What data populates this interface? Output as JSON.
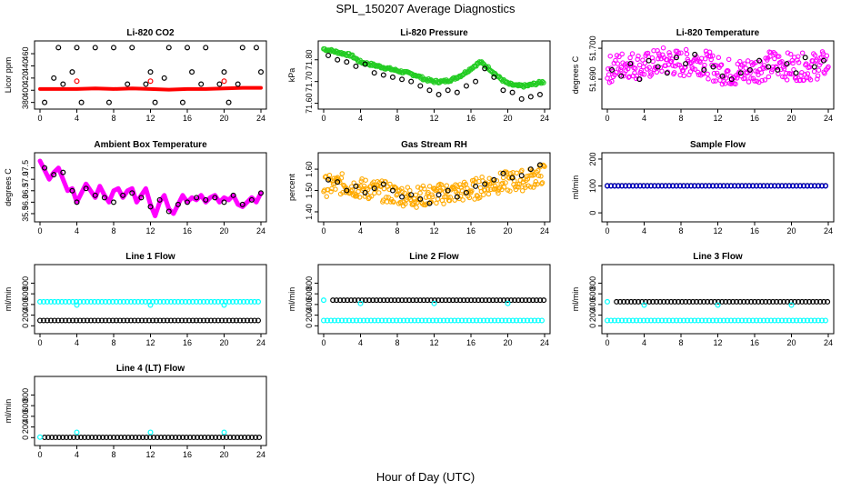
{
  "title": "SPL_150207  Average Diagnostics",
  "xlabel": "Hour of Day (UTC)",
  "colors": {
    "black": "#000000",
    "red": "#ff0000",
    "green": "#22cc22",
    "magenta": "#ff00ff",
    "orange": "#ffaa00",
    "blue": "#0000cc",
    "cyan": "#00ffff"
  },
  "chart_data": [
    {
      "type": "scatter",
      "title": "Li-820 CO2",
      "ylabel": "Licor ppm",
      "xlim": [
        0,
        24
      ],
      "ylim": [
        375,
        475
      ],
      "xticks": [
        "0",
        "4",
        "8",
        "12",
        "16",
        "20",
        "24"
      ],
      "yticks": [
        "380",
        "400",
        "420",
        "440",
        "460"
      ],
      "series": [
        {
          "color": "red",
          "kind": "line",
          "x": [
            0,
            2,
            4,
            6,
            8,
            10,
            12,
            14,
            16,
            18,
            20,
            22,
            24
          ],
          "y": [
            402,
            402,
            402,
            403,
            402,
            403,
            402,
            401,
            402,
            402,
            403,
            404,
            404
          ]
        },
        {
          "color": "black",
          "kind": "points",
          "x": [
            0.5,
            2,
            2.5,
            4,
            3.5,
            4.5,
            6,
            7.5,
            8,
            10,
            11.5,
            12,
            12.5,
            14,
            15.5,
            16,
            16.5,
            18,
            19.5,
            20,
            20.5,
            22,
            23.5,
            24,
            1.5,
            9.5,
            13.5,
            17.5,
            21.5
          ],
          "y": [
            380,
            470,
            410,
            470,
            430,
            380,
            470,
            380,
            470,
            470,
            410,
            430,
            380,
            470,
            380,
            470,
            430,
            470,
            410,
            430,
            380,
            470,
            470,
            430,
            420,
            410,
            420,
            410,
            410
          ]
        },
        {
          "color": "red",
          "kind": "points",
          "x": [
            4,
            12,
            20
          ],
          "y": [
            415,
            415,
            415
          ]
        }
      ]
    },
    {
      "type": "scatter",
      "title": "Li-820 Pressure",
      "ylabel": "kPa",
      "xlim": [
        0,
        24
      ],
      "ylim": [
        71.59,
        71.87
      ],
      "xticks": [
        "0",
        "4",
        "8",
        "12",
        "16",
        "20",
        "24"
      ],
      "yticks": [
        "71.60",
        "71.70",
        "71.80"
      ],
      "series": [
        {
          "color": "green",
          "kind": "dense",
          "x": [
            0,
            1,
            2,
            3,
            4,
            5,
            6,
            7,
            8,
            9,
            10,
            11,
            12,
            13,
            14,
            15,
            16,
            17,
            18,
            19,
            20,
            21,
            22,
            23,
            24
          ],
          "y": [
            71.85,
            71.84,
            71.83,
            71.82,
            71.79,
            71.78,
            71.77,
            71.76,
            71.75,
            71.74,
            71.73,
            71.71,
            71.7,
            71.7,
            71.71,
            71.73,
            71.76,
            71.79,
            71.76,
            71.72,
            71.69,
            71.68,
            71.68,
            71.69,
            71.7
          ]
        },
        {
          "color": "black",
          "kind": "points",
          "x": [
            0.5,
            1.5,
            2.5,
            3.5,
            4.5,
            5.5,
            6.5,
            7.5,
            8.5,
            9.5,
            10.5,
            11.5,
            12.5,
            13.5,
            14.5,
            15.5,
            16.5,
            17.5,
            18.5,
            19.5,
            20.5,
            21.5,
            22.5,
            23.5
          ],
          "y": [
            71.82,
            71.8,
            71.79,
            71.77,
            71.78,
            71.74,
            71.73,
            71.72,
            71.71,
            71.7,
            71.68,
            71.66,
            71.64,
            71.66,
            71.65,
            71.68,
            71.7,
            71.76,
            71.72,
            71.66,
            71.65,
            71.62,
            71.63,
            71.64
          ]
        }
      ]
    },
    {
      "type": "scatter",
      "title": "Li-820 Temperature",
      "ylabel": "degrees C",
      "xlim": [
        0,
        24
      ],
      "ylim": [
        51.6815,
        51.7012
      ],
      "xticks": [
        "0",
        "4",
        "8",
        "12",
        "16",
        "20",
        "24"
      ],
      "yticks": [
        "51.690",
        "51.700"
      ],
      "series": [
        {
          "color": "magenta",
          "kind": "noise",
          "x": [
            0,
            2,
            4,
            6,
            8,
            10,
            12,
            14,
            16,
            18,
            20,
            22,
            24
          ],
          "y": [
            51.693,
            51.695,
            51.694,
            51.696,
            51.695,
            51.696,
            51.693,
            51.692,
            51.693,
            51.695,
            51.694,
            51.694,
            51.695
          ],
          "spread": 0.0045
        },
        {
          "color": "black",
          "kind": "points",
          "x": [
            0.5,
            1.5,
            2.5,
            3.5,
            4.5,
            5.5,
            6.5,
            7.5,
            8.5,
            9.5,
            10.5,
            11.5,
            12.5,
            13.5,
            14.5,
            15.5,
            16.5,
            17.5,
            18.5,
            19.5,
            20.5,
            21.5,
            22.5,
            23.5
          ],
          "y": [
            51.693,
            51.691,
            51.695,
            51.69,
            51.696,
            51.694,
            51.692,
            51.697,
            51.695,
            51.698,
            51.693,
            51.694,
            51.691,
            51.69,
            51.692,
            51.693,
            51.696,
            51.694,
            51.693,
            51.695,
            51.692,
            51.697,
            51.694,
            51.696
          ]
        }
      ]
    },
    {
      "type": "scatter",
      "title": "Ambient Box Temperature",
      "ylabel": "degrees C",
      "xlim": [
        0,
        24
      ],
      "ylim": [
        35.3,
        38.0
      ],
      "xticks": [
        "0",
        "4",
        "8",
        "12",
        "16",
        "20",
        "24"
      ],
      "yticks": [
        "35.5",
        "36.0",
        "36.5",
        "37.0",
        "37.5"
      ],
      "series": [
        {
          "color": "magenta",
          "kind": "thickline",
          "x": [
            0,
            0.5,
            1,
            1.5,
            2,
            2.5,
            3,
            3.5,
            4,
            4.5,
            5,
            5.5,
            6,
            6.5,
            7,
            7.5,
            8,
            8.5,
            9,
            9.5,
            10,
            10.5,
            11,
            11.5,
            12,
            12.5,
            13,
            13.5,
            14,
            14.5,
            15,
            15.5,
            16,
            16.5,
            17,
            17.5,
            18,
            18.5,
            19,
            19.5,
            20,
            20.5,
            21,
            21.5,
            22,
            22.5,
            23,
            23.5,
            24
          ],
          "y": [
            37.8,
            37.4,
            37.0,
            37.3,
            37.5,
            37.0,
            36.5,
            36.6,
            36.0,
            36.4,
            36.8,
            36.5,
            36.2,
            36.7,
            36.3,
            36.0,
            36.5,
            36.6,
            36.2,
            36.5,
            36.6,
            36.0,
            36.3,
            36.6,
            35.9,
            35.4,
            36.0,
            36.3,
            35.7,
            35.5,
            35.9,
            36.3,
            36.0,
            36.2,
            36.1,
            36.3,
            36.0,
            36.2,
            36.3,
            36.0,
            36.2,
            36.1,
            36.3,
            35.9,
            35.8,
            36.0,
            36.2,
            36.0,
            36.4
          ]
        },
        {
          "color": "black",
          "kind": "points",
          "x": [
            0.5,
            1.5,
            2.5,
            3.5,
            4,
            5,
            6,
            7,
            8,
            9,
            10,
            11,
            12,
            13,
            14,
            15,
            16,
            17,
            18,
            19,
            20,
            21,
            22,
            23,
            24
          ],
          "y": [
            37.5,
            37.2,
            37.3,
            36.5,
            36.0,
            36.6,
            36.3,
            36.2,
            36.0,
            36.3,
            36.4,
            36.2,
            35.8,
            36.1,
            35.6,
            35.9,
            36.0,
            36.2,
            36.1,
            36.2,
            36.0,
            36.3,
            35.9,
            36.1,
            36.4
          ]
        }
      ]
    },
    {
      "type": "scatter",
      "title": "Gas Stream RH",
      "ylabel": "percent",
      "xlim": [
        0,
        24
      ],
      "ylim": [
        1.37,
        1.66
      ],
      "xticks": [
        "0",
        "4",
        "8",
        "12",
        "16",
        "20",
        "24"
      ],
      "yticks": [
        "1.40",
        "1.50",
        "1.60"
      ],
      "series": [
        {
          "color": "orange",
          "kind": "noise",
          "x": [
            0,
            2,
            4,
            6,
            8,
            10,
            12,
            14,
            16,
            18,
            20,
            22,
            24
          ],
          "y": [
            1.52,
            1.53,
            1.51,
            1.5,
            1.48,
            1.47,
            1.48,
            1.49,
            1.5,
            1.53,
            1.54,
            1.55,
            1.58
          ],
          "spread": 0.05
        },
        {
          "color": "black",
          "kind": "points",
          "x": [
            0.5,
            1.5,
            2.5,
            3.5,
            4.5,
            5.5,
            6.5,
            7.5,
            8.5,
            9.5,
            10.5,
            11.5,
            12.5,
            13.5,
            14.5,
            15.5,
            16.5,
            17.5,
            18.5,
            19.5,
            20.5,
            21.5,
            22.5,
            23.5
          ],
          "y": [
            1.55,
            1.54,
            1.5,
            1.52,
            1.49,
            1.51,
            1.53,
            1.5,
            1.47,
            1.48,
            1.46,
            1.44,
            1.48,
            1.5,
            1.47,
            1.49,
            1.52,
            1.53,
            1.55,
            1.58,
            1.56,
            1.57,
            1.6,
            1.62
          ]
        }
      ]
    },
    {
      "type": "scatter",
      "title": "Sample Flow",
      "ylabel": "ml/min",
      "xlim": [
        0,
        24
      ],
      "ylim": [
        -20,
        210
      ],
      "xticks": [
        "0",
        "4",
        "8",
        "12",
        "16",
        "20",
        "24"
      ],
      "yticks": [
        "0",
        "100",
        "200"
      ],
      "series": [
        {
          "color": "black",
          "kind": "flat",
          "x": [
            0,
            24
          ],
          "y": [
            101,
            101
          ]
        },
        {
          "color": "blue",
          "kind": "flat",
          "x": [
            0,
            24
          ],
          "y": [
            100,
            100
          ]
        }
      ]
    },
    {
      "type": "scatter",
      "title": "Line 1 Flow",
      "ylabel": "ml/min",
      "xlim": [
        0,
        24
      ],
      "ylim": [
        -80,
        1080
      ],
      "xticks": [
        "0",
        "4",
        "8",
        "12",
        "16",
        "20",
        "24"
      ],
      "yticks": [
        "0",
        "200",
        "400",
        "600",
        "800"
      ],
      "series": [
        {
          "color": "cyan",
          "kind": "flat",
          "x": [
            0,
            24
          ],
          "y": [
            450,
            450
          ]
        },
        {
          "color": "black",
          "kind": "flat",
          "x": [
            0,
            24
          ],
          "y": [
            100,
            100
          ]
        },
        {
          "color": "cyan",
          "kind": "points",
          "x": [
            4,
            12,
            20
          ],
          "y": [
            390,
            390,
            390
          ]
        }
      ]
    },
    {
      "type": "scatter",
      "title": "Line 2 Flow",
      "ylabel": "ml/min",
      "xlim": [
        0,
        24
      ],
      "ylim": [
        -80,
        1080
      ],
      "xticks": [
        "0",
        "4",
        "8",
        "12",
        "16",
        "20",
        "24"
      ],
      "yticks": [
        "0",
        "200",
        "400",
        "600",
        "800"
      ],
      "series": [
        {
          "color": "black",
          "kind": "flat",
          "x": [
            1,
            24
          ],
          "y": [
            480,
            480
          ]
        },
        {
          "color": "cyan",
          "kind": "flat",
          "x": [
            0,
            24
          ],
          "y": [
            100,
            100
          ]
        },
        {
          "color": "cyan",
          "kind": "points",
          "x": [
            0,
            4,
            12,
            20
          ],
          "y": [
            480,
            420,
            420,
            420
          ]
        }
      ]
    },
    {
      "type": "scatter",
      "title": "Line 3 Flow",
      "ylabel": "ml/min",
      "xlim": [
        0,
        24
      ],
      "ylim": [
        -80,
        1080
      ],
      "xticks": [
        "0",
        "4",
        "8",
        "12",
        "16",
        "20",
        "24"
      ],
      "yticks": [
        "0",
        "200",
        "400",
        "600",
        "800"
      ],
      "series": [
        {
          "color": "black",
          "kind": "flat",
          "x": [
            1,
            24
          ],
          "y": [
            450,
            450
          ]
        },
        {
          "color": "cyan",
          "kind": "flat",
          "x": [
            0,
            24
          ],
          "y": [
            100,
            100
          ]
        },
        {
          "color": "cyan",
          "kind": "points",
          "x": [
            0,
            4,
            12,
            20
          ],
          "y": [
            450,
            390,
            390,
            390
          ]
        }
      ]
    },
    {
      "type": "scatter",
      "title": "Line 4 (LT) Flow",
      "ylabel": "ml/min",
      "xlim": [
        0,
        24
      ],
      "ylim": [
        -80,
        1080
      ],
      "xticks": [
        "0",
        "4",
        "8",
        "12",
        "16",
        "20",
        "24"
      ],
      "yticks": [
        "0",
        "200",
        "400",
        "600",
        "800"
      ],
      "series": [
        {
          "color": "black",
          "kind": "flat",
          "x": [
            0.5,
            24
          ],
          "y": [
            5,
            5
          ]
        },
        {
          "color": "cyan",
          "kind": "points",
          "x": [
            0,
            4,
            12,
            20
          ],
          "y": [
            10,
            100,
            100,
            100
          ]
        }
      ]
    }
  ]
}
